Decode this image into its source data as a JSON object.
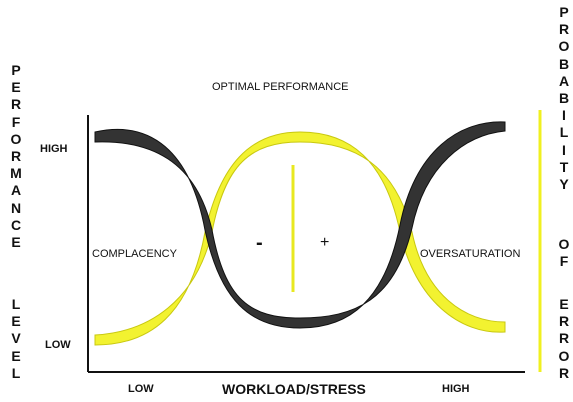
{
  "left_axis": {
    "words": [
      "PERFORMANCE",
      "LEVEL"
    ],
    "high": "HIGH",
    "low": "LOW"
  },
  "right_axis": {
    "words": [
      "PROBABILITY",
      "OF",
      "ERROR"
    ]
  },
  "bottom_axis": {
    "title": "WORKLOAD/STRESS",
    "low": "LOW",
    "high": "HIGH"
  },
  "regions": {
    "top": "OPTIMAL PERFORMANCE",
    "left": "COMPLACENCY",
    "right": "OVERSATURATION",
    "minus": "-",
    "plus": "+"
  }
}
